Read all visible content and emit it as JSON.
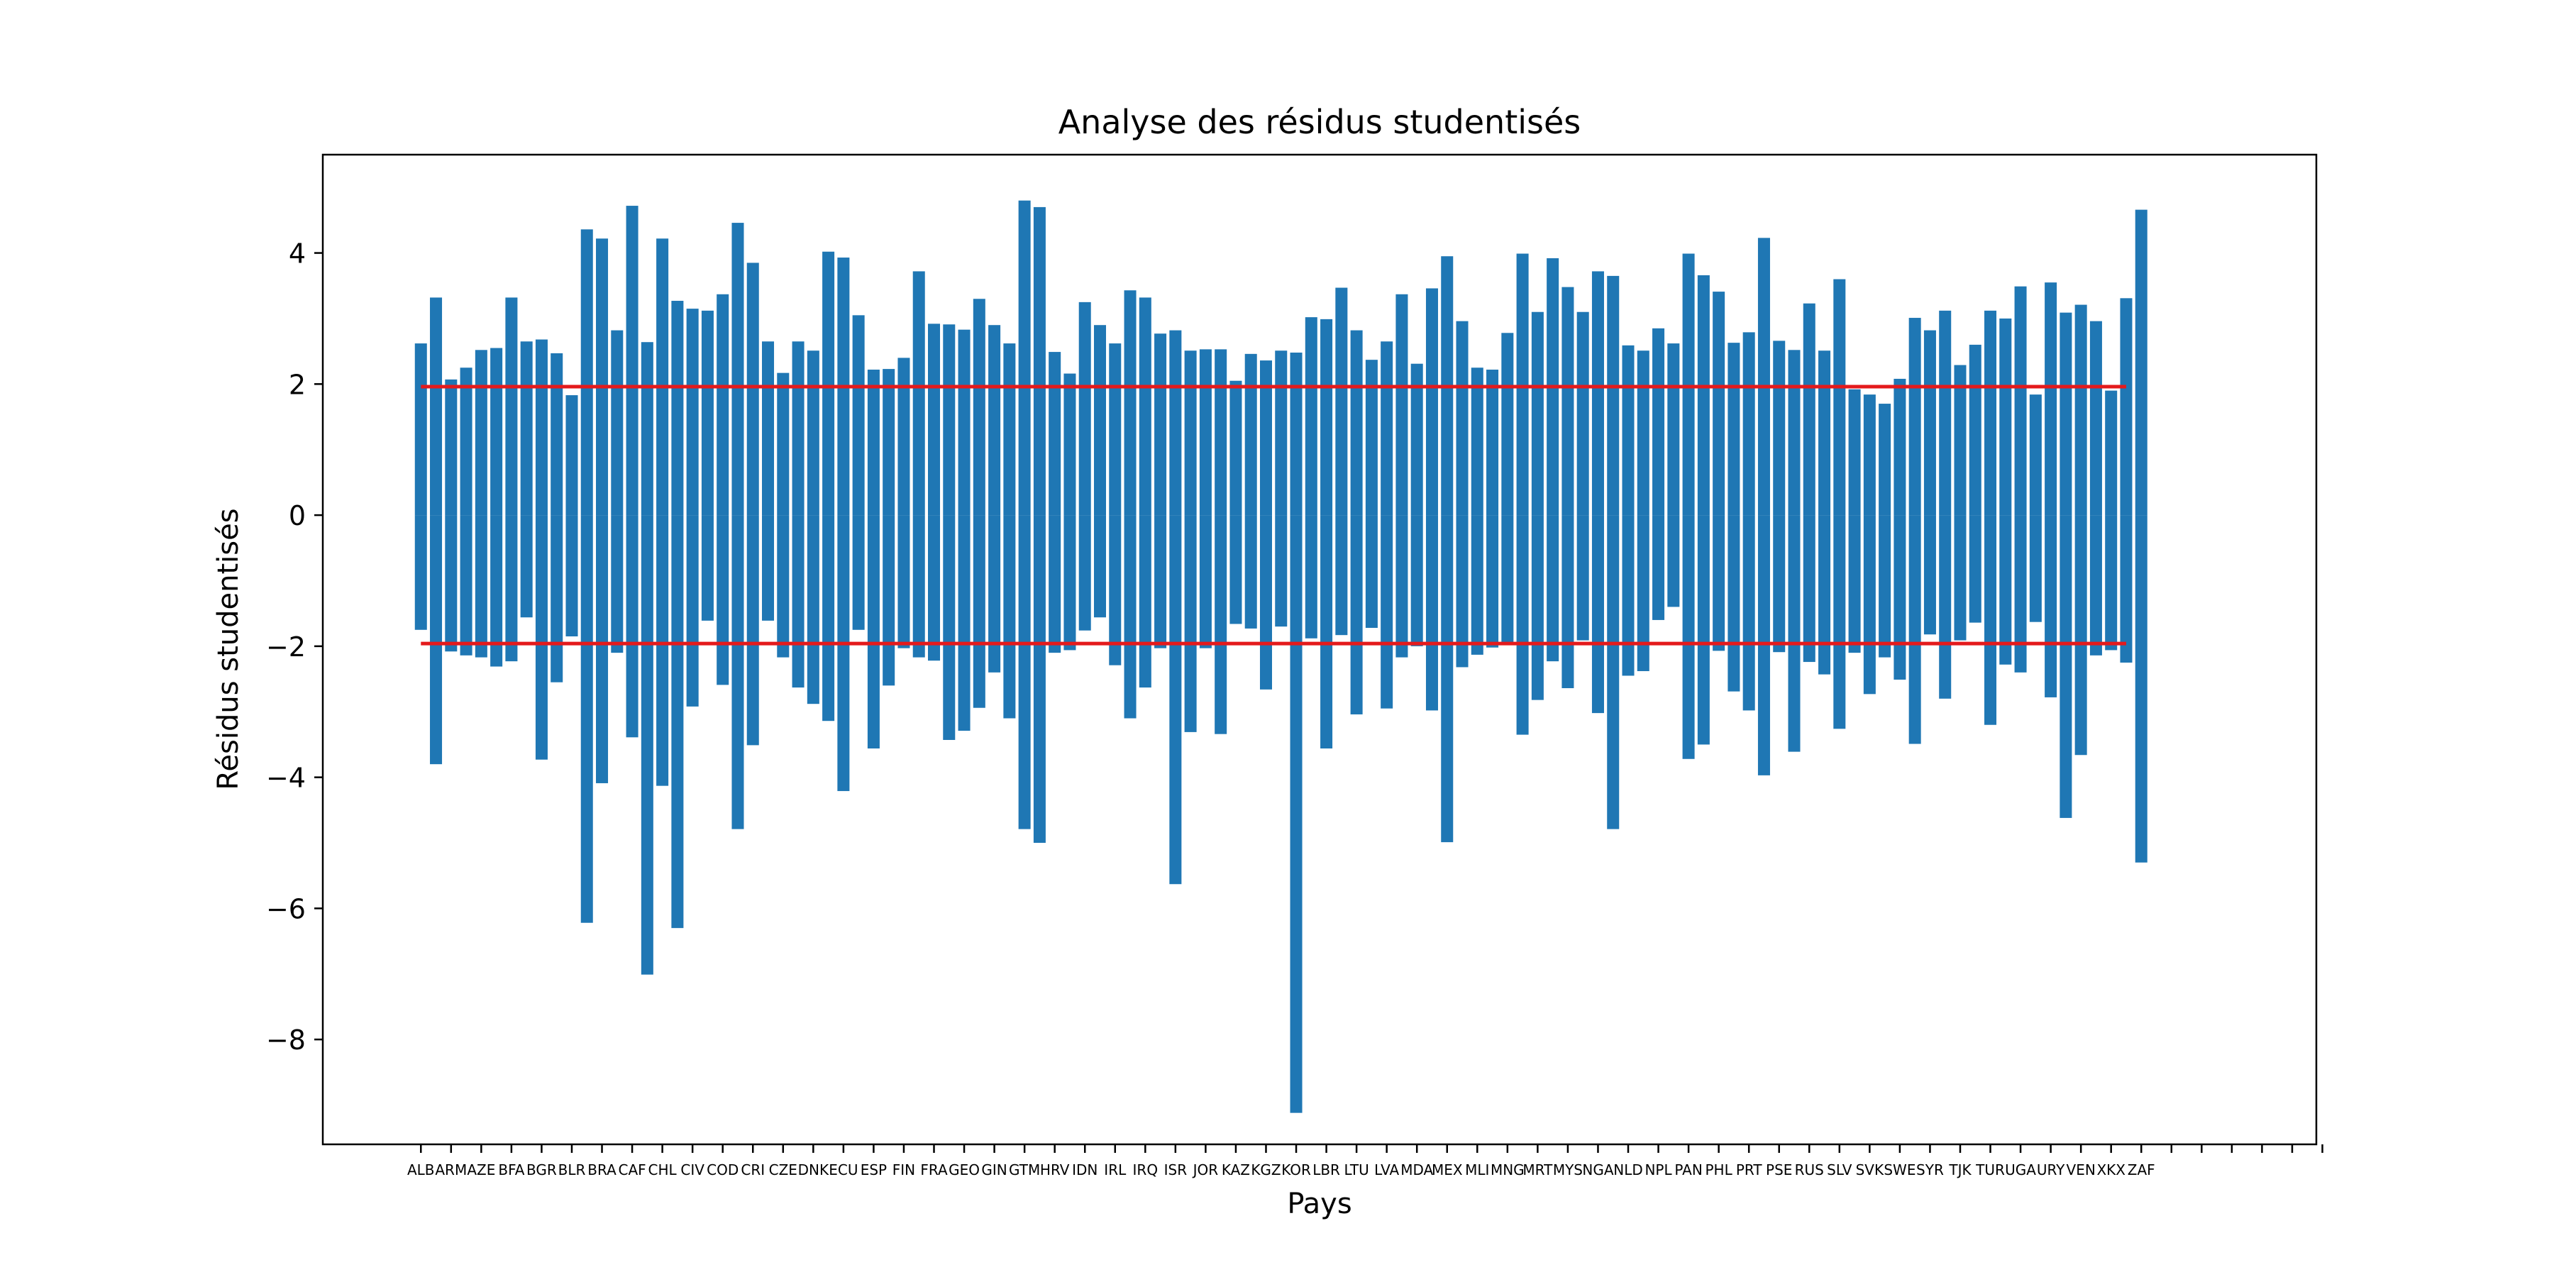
{
  "chart_data": {
    "type": "bar",
    "title": "Analyse des résidus studentisés",
    "xlabel": "Pays",
    "ylabel": "Résidus studentisés",
    "ylim": [
      -9.6,
      5.5
    ],
    "yticks": [
      -8,
      -6,
      -4,
      -2,
      0,
      2,
      4
    ],
    "ytick_labels": [
      "−8",
      "−6",
      "−4",
      "−2",
      "0",
      "2",
      "4"
    ],
    "xlim": [
      -6.5,
      125.6
    ],
    "grid": false,
    "bar_color": "#1f77b4",
    "threshold_color": "#e41a1c",
    "thresholds": {
      "values": [
        1.96,
        -1.96
      ],
      "x_from": 0,
      "x_to": 113
    },
    "label_positions": [
      0,
      2,
      4,
      6,
      8,
      10,
      12,
      14,
      16,
      18,
      20,
      22,
      24,
      26,
      28,
      30,
      32,
      34,
      36,
      38,
      40,
      42,
      44,
      46,
      48,
      50,
      52,
      54,
      56,
      58,
      60,
      62,
      64,
      66,
      68,
      70,
      72,
      74,
      76,
      78,
      80,
      82,
      84,
      86,
      88,
      90,
      92,
      94,
      96,
      98,
      100,
      102,
      104,
      106,
      108,
      110,
      112,
      114,
      116,
      118,
      120,
      122,
      124,
      126
    ],
    "tick_labels": [
      "ALB",
      "ARM",
      "AZE",
      "BFA",
      "BGR",
      "BLR",
      "BRA",
      "CAF",
      "CHL",
      "CIV",
      "COD",
      "CRI",
      "CZE",
      "DNK",
      "ECU",
      "ESP",
      "FIN",
      "FRA",
      "GEO",
      "GIN",
      "GTM",
      "HRV",
      "IDN",
      "IRL",
      "IRQ",
      "ISR",
      "JOR",
      "KAZ",
      "KGZ",
      "KOR",
      "LBR",
      "LTU",
      "LVA",
      "MDA",
      "MEX",
      "MLI",
      "MNG",
      "MRT",
      "MYS",
      "NGA",
      "NLD",
      "NPL",
      "PAN",
      "PHL",
      "PRT",
      "PSE",
      "RUS",
      "SLV",
      "SVK",
      "SWE",
      "SYR",
      "TJK",
      "TUR",
      "UGA",
      "URY",
      "VEN",
      "XKX",
      "ZAF",
      "",
      "",
      "",
      "",
      "",
      ""
    ],
    "categories": [
      "b0",
      "b1",
      "b2",
      "b3",
      "b4",
      "b5",
      "b6",
      "b7",
      "b8",
      "b9",
      "b10",
      "b11",
      "b12",
      "b13",
      "b14",
      "b15",
      "b16",
      "b17",
      "b18",
      "b19",
      "b20",
      "b21",
      "b22",
      "b23",
      "b24",
      "b25",
      "b26",
      "b27",
      "b28",
      "b29",
      "b30",
      "b31",
      "b32",
      "b33",
      "b34",
      "b35",
      "b36",
      "b37",
      "b38",
      "b39",
      "b40",
      "b41",
      "b42",
      "b43",
      "b44",
      "b45",
      "b46",
      "b47",
      "b48",
      "b49",
      "b50",
      "b51",
      "b52",
      "b53",
      "b54",
      "b55",
      "b56",
      "b57",
      "b58",
      "b59",
      "b60",
      "b61",
      "b62",
      "b63",
      "b64",
      "b65",
      "b66",
      "b67",
      "b68",
      "b69",
      "b70",
      "b71",
      "b72",
      "b73",
      "b74",
      "b75",
      "b76",
      "b77",
      "b78",
      "b79",
      "b80",
      "b81",
      "b82",
      "b83",
      "b84",
      "b85",
      "b86",
      "b87",
      "b88",
      "b89",
      "b90",
      "b91",
      "b92",
      "b93",
      "b94",
      "b95",
      "b96",
      "b97",
      "b98",
      "b99",
      "b100",
      "b101",
      "b102",
      "b103",
      "b104",
      "b105",
      "b106",
      "b107",
      "b108",
      "b109",
      "b110",
      "b111",
      "b112",
      "b113",
      "b114"
    ],
    "series": [
      {
        "values": [
          2.62,
          3.32,
          2.07,
          2.25,
          2.52,
          2.55,
          3.32,
          2.65,
          2.68,
          2.47,
          1.83,
          4.36,
          4.22,
          2.82,
          4.72,
          2.64,
          4.22,
          3.27,
          3.15,
          3.12,
          3.37,
          4.46,
          3.85,
          2.65,
          2.17,
          2.65,
          2.51,
          4.02,
          3.93,
          3.05,
          2.22,
          2.23,
          2.4,
          3.72,
          2.92,
          2.91,
          2.83,
          3.3,
          2.9,
          2.62,
          4.8,
          4.7,
          2.49,
          2.16,
          3.25,
          2.9,
          2.62,
          3.43,
          3.32,
          2.77,
          2.82,
          2.51,
          2.53,
          2.53,
          2.05,
          2.46,
          2.36,
          2.51,
          2.48,
          3.02,
          2.99,
          3.47,
          2.82,
          2.37,
          2.65,
          3.37,
          2.31,
          3.46,
          3.95,
          2.96,
          2.25,
          2.22,
          2.78,
          3.99,
          3.1,
          3.92,
          3.48,
          3.1,
          3.72,
          3.65,
          2.59,
          2.51,
          2.85,
          2.62,
          3.99,
          3.66,
          3.41,
          2.63,
          2.79,
          4.23,
          2.66,
          2.52,
          3.23,
          2.51,
          3.6,
          1.92,
          1.84,
          1.7,
          2.08,
          3.01,
          2.82,
          3.12,
          2.29,
          2.6,
          3.12,
          3.0,
          3.49,
          1.84,
          3.55,
          3.09,
          3.21,
          2.96,
          1.9,
          3.31,
          4.66
        ]
      },
      {
        "values": [
          -1.75,
          -3.8,
          -2.08,
          -2.14,
          -2.17,
          -2.31,
          -2.23,
          -1.56,
          -3.73,
          -2.55,
          -1.85,
          -6.22,
          -4.09,
          -2.1,
          -3.39,
          -7.01,
          -4.13,
          -6.3,
          -2.92,
          -1.61,
          -2.59,
          -4.79,
          -3.51,
          -1.61,
          -2.17,
          -2.63,
          -2.88,
          -3.14,
          -4.21,
          -1.75,
          -3.56,
          -2.6,
          -2.03,
          -2.17,
          -2.22,
          -3.43,
          -3.29,
          -2.94,
          -2.4,
          -3.1,
          -4.79,
          -5.0,
          -2.1,
          -2.06,
          -1.76,
          -1.56,
          -2.29,
          -3.1,
          -2.63,
          -2.03,
          -5.63,
          -3.31,
          -2.03,
          -3.34,
          -1.66,
          -1.73,
          -2.66,
          -1.7,
          -9.12,
          -1.88,
          -3.56,
          -1.83,
          -3.04,
          -1.72,
          -2.95,
          -2.17,
          -2.0,
          -2.98,
          -4.99,
          -2.32,
          -2.13,
          -2.02,
          -1.96,
          -3.35,
          -2.82,
          -2.23,
          -2.64,
          -1.91,
          -3.02,
          -4.79,
          -2.45,
          -2.38,
          -1.6,
          -1.4,
          -3.72,
          -3.5,
          -2.07,
          -2.69,
          -2.98,
          -3.97,
          -2.09,
          -3.61,
          -2.24,
          -2.43,
          -3.26,
          -2.1,
          -2.73,
          -2.17,
          -2.51,
          -3.49,
          -1.82,
          -2.8,
          -1.91,
          -1.64,
          -3.2,
          -2.28,
          -2.4,
          -1.63,
          -2.78,
          -4.62,
          -3.66,
          -2.14,
          -2.06,
          -2.25,
          -5.3
        ]
      }
    ]
  }
}
